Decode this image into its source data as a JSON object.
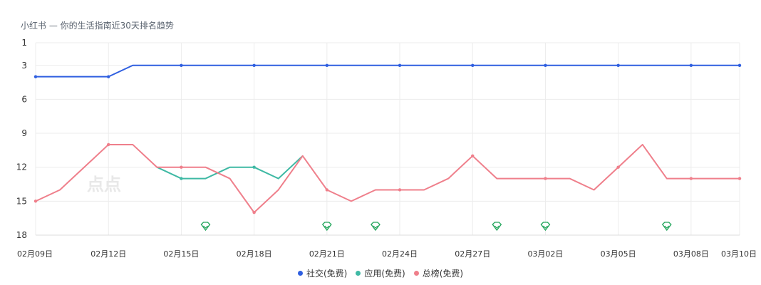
{
  "chart_data": {
    "type": "line",
    "title": "小红书 — 你的生活指南近30天排名趋势",
    "watermark": "点点",
    "y_axis": {
      "ticks": [
        1,
        3,
        6,
        9,
        12,
        15,
        18
      ],
      "inverted": true,
      "range": [
        1,
        18
      ]
    },
    "x": [
      "02月09日",
      "02月10日",
      "02月11日",
      "02月12日",
      "02月13日",
      "02月14日",
      "02月15日",
      "02月16日",
      "02月17日",
      "02月18日",
      "02月19日",
      "02月20日",
      "02月21日",
      "02月22日",
      "02月23日",
      "02月24日",
      "02月25日",
      "02月26日",
      "02月27日",
      "02月28日",
      "03月01日",
      "03月02日",
      "03月03日",
      "03月04日",
      "03月05日",
      "03月06日",
      "03月07日",
      "03月08日",
      "03月09日",
      "03月10日"
    ],
    "x_tick_labels": [
      "02月09日",
      "02月12日",
      "02月15日",
      "02月18日",
      "02月21日",
      "02月24日",
      "02月27日",
      "03月02日",
      "03月05日",
      "03月08日",
      "03月10日"
    ],
    "series": [
      {
        "name": "社交(免费)",
        "color": "#2f5fe0",
        "values": [
          4,
          4,
          4,
          4,
          3,
          3,
          3,
          3,
          3,
          3,
          3,
          3,
          3,
          3,
          3,
          3,
          3,
          3,
          3,
          3,
          3,
          3,
          3,
          3,
          3,
          3,
          3,
          3,
          3,
          3
        ]
      },
      {
        "name": "应用(免费)",
        "color": "#3fb9a4",
        "values": [
          null,
          null,
          null,
          null,
          null,
          12,
          13,
          13,
          12,
          12,
          13,
          11,
          null,
          null,
          null,
          null,
          null,
          null,
          null,
          null,
          null,
          null,
          null,
          null,
          null,
          null,
          null,
          null,
          null,
          null
        ]
      },
      {
        "name": "总榜(免费)",
        "color": "#ef7f8b",
        "values": [
          15,
          14,
          12,
          10,
          10,
          12,
          12,
          12,
          13,
          16,
          14,
          11,
          14,
          15,
          14,
          14,
          14,
          13,
          11,
          13,
          13,
          13,
          13,
          14,
          12,
          10,
          13,
          13,
          13,
          13
        ]
      }
    ],
    "markers": {
      "color": "#22a55b",
      "dates": [
        "02月16日",
        "02月21日",
        "02月23日",
        "02月28日",
        "03月02日",
        "03月07日"
      ]
    },
    "grid": true,
    "legend_position": "bottom"
  }
}
